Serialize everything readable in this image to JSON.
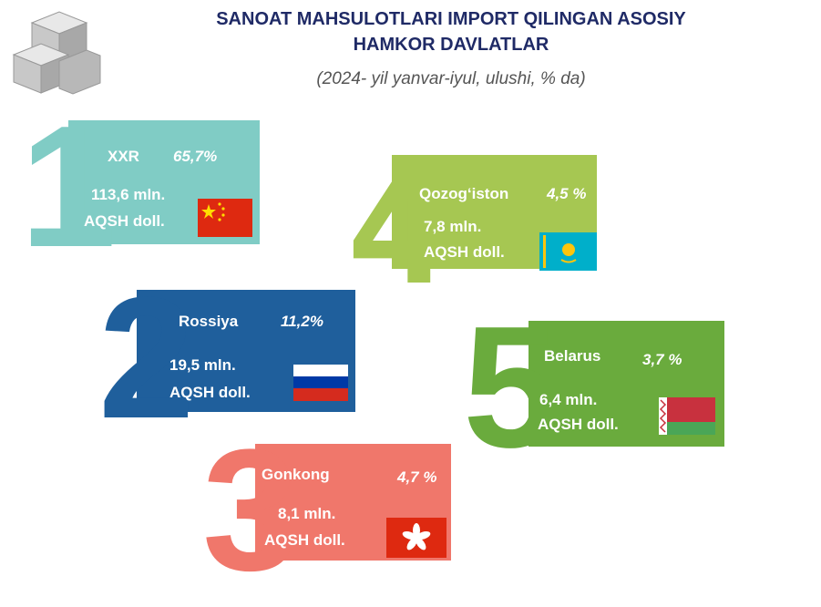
{
  "header": {
    "title": [
      "SANOAT MAHSULOTLARI IMPORT QILINGAN ASOSIY",
      "HAMKOR DAVLATLAR"
    ],
    "subtitle": "(2024- yil yanvar-iyul, ulushi, % da)"
  },
  "cards": [
    {
      "rank": "1",
      "country": "XXR",
      "share": "65,7%",
      "amount": "113,6 mln.",
      "unit": "AQSH doll."
    },
    {
      "rank": "4",
      "country": "Qozog‘iston",
      "share": "4,5 %",
      "amount": "7,8 mln.",
      "unit": "AQSH doll."
    },
    {
      "rank": "2",
      "country": "Rossiya",
      "share": "11,2%",
      "amount": "19,5 mln.",
      "unit": "AQSH doll."
    },
    {
      "rank": "5",
      "country": "Belarus",
      "share": "3,7 %",
      "amount": "6,4 mln.",
      "unit": "AQSH doll."
    },
    {
      "rank": "3",
      "country": "Gonkong",
      "share": "4,7 %",
      "amount": "8,1 mln.",
      "unit": "AQSH doll."
    }
  ]
}
